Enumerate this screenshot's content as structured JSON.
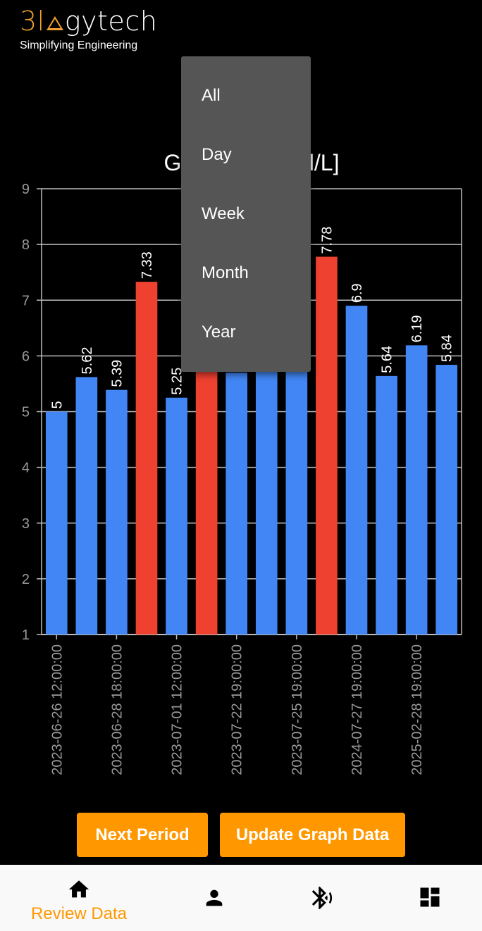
{
  "logo": {
    "brand_pre": "3l",
    "brand_post": "gytech",
    "tagline": "Simplifying Engineering"
  },
  "chart_data": {
    "type": "bar",
    "title": "Glucose [mmol/L]",
    "ylim": [
      1,
      9
    ],
    "y_ticks": [
      1,
      2,
      3,
      4,
      5,
      6,
      7,
      8,
      9
    ],
    "values": [
      5,
      5.62,
      5.39,
      7.33,
      5.25,
      7.5,
      5.7,
      5.8,
      5.9,
      7.78,
      6.9,
      5.64,
      6.19,
      5.84
    ],
    "value_labels": [
      "5",
      "5.62",
      "5.39",
      "7.33",
      "5.25",
      "",
      "",
      "",
      "",
      "7.78",
      "6.9",
      "5.64",
      "6.19",
      "5.84"
    ],
    "x_tick_labels": [
      "2023-06-26 12:00:00",
      "2023-06-28 18:00:00",
      "2023-07-01 12:00:00",
      "2023-07-22 19:00:00",
      "2023-07-25 19:00:00",
      "2024-07-27 19:00:00",
      "2025-02-28 19:00:00"
    ],
    "colors": {
      "normal": "#4286f5",
      "high": "#ef4130"
    },
    "high_threshold": 7,
    "grid": true
  },
  "menu": {
    "items": [
      "All",
      "Day",
      "Week",
      "Month",
      "Year"
    ]
  },
  "buttons": {
    "next_period": "Next Period",
    "update": "Update Graph Data"
  },
  "nav": {
    "review_label": "Review Data"
  }
}
